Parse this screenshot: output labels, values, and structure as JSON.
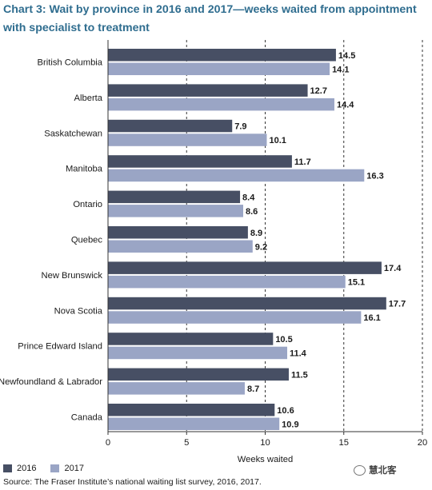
{
  "title": "Chart 3: Wait by province in 2016 and 2017—weeks waited from appointment with specialist to treatment",
  "legend": {
    "s2016": "2016",
    "s2017": "2017"
  },
  "source": "Source: The Fraser Institute’s national waiting list survey, 2016, 2017.",
  "watermark": "慧北客",
  "colors": {
    "s2016": "#474f64",
    "s2017": "#9aa5c5",
    "grid": "#333333",
    "title": "#2f6d8f"
  },
  "chart_data": {
    "type": "bar",
    "orientation": "horizontal",
    "title": "Chart 3: Wait by province in 2016 and 2017—weeks waited from appointment with specialist to treatment",
    "xlabel": "Weeks waited",
    "ylabel": "",
    "xlim": [
      0,
      20
    ],
    "xticks": [
      0,
      5,
      10,
      15,
      20
    ],
    "grid": "vertical dashed",
    "legend_position": "bottom-left",
    "categories": [
      "British Columbia",
      "Alberta",
      "Saskatchewan",
      "Manitoba",
      "Ontario",
      "Quebec",
      "New Brunswick",
      "Nova Scotia",
      "Prince Edward Island",
      "Newfoundland & Labrador",
      "Canada"
    ],
    "series": [
      {
        "name": "2016",
        "values": [
          14.5,
          12.7,
          7.9,
          11.7,
          8.4,
          8.9,
          17.4,
          17.7,
          10.5,
          11.5,
          10.6
        ]
      },
      {
        "name": "2017",
        "values": [
          14.1,
          14.4,
          10.1,
          16.3,
          8.6,
          9.2,
          15.1,
          16.1,
          11.4,
          8.7,
          10.9
        ]
      }
    ]
  }
}
